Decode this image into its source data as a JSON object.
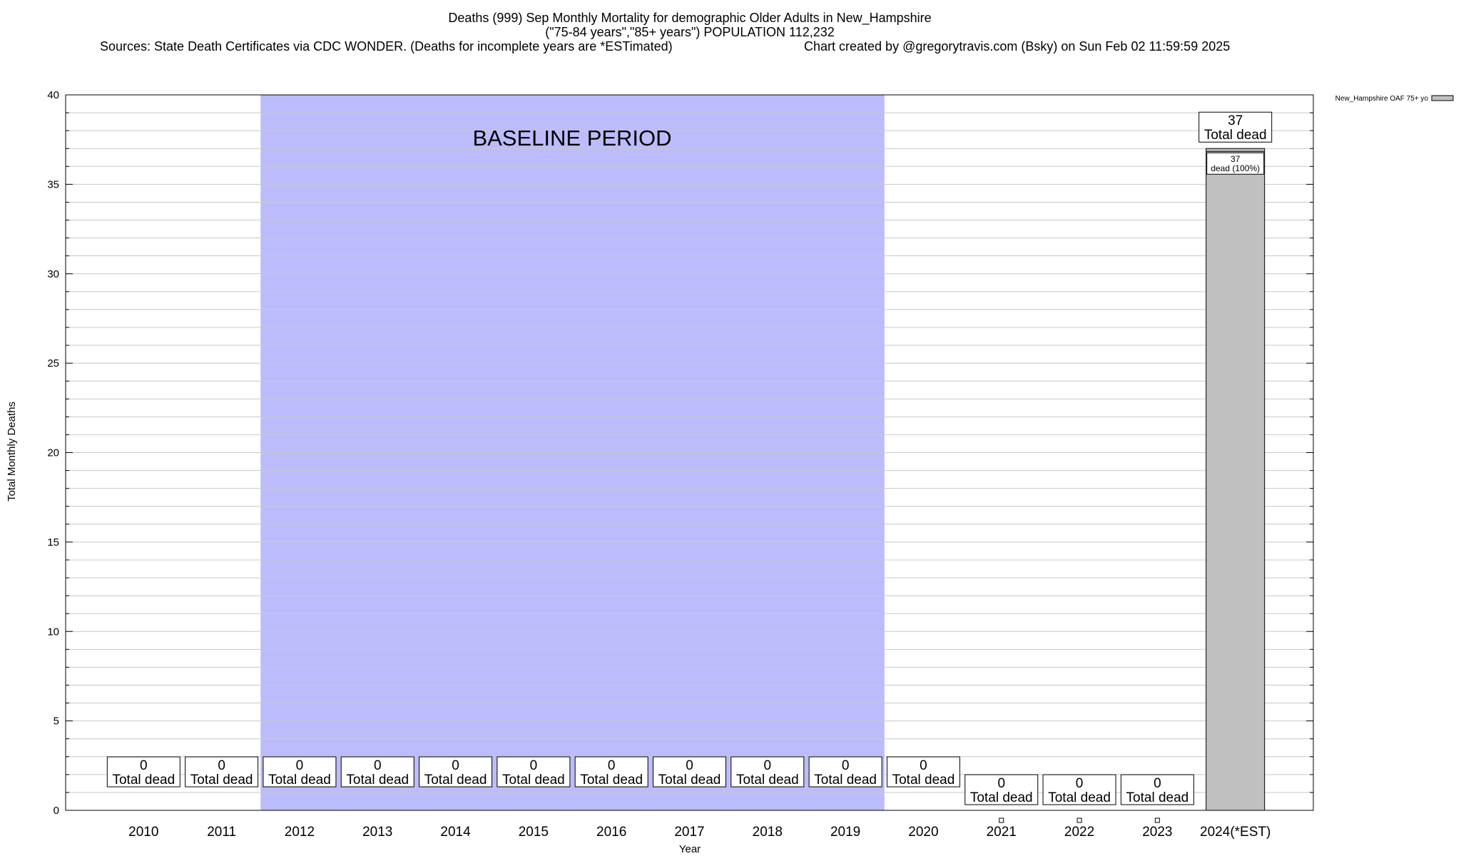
{
  "chart_data": {
    "type": "bar",
    "title_lines": [
      "Deaths (999) Sep Monthly Mortality for demographic Older Adults in New_Hampshire",
      "(\"75-84 years\",\"85+ years\") POPULATION 112,232"
    ],
    "sources": "Sources: State Death Certificates via CDC WONDER. (Deaths for incomplete years are *ESTimated)",
    "credit": "Chart created by @gregorytravis.com (Bsky) on Sun Feb 02 11:59:59 2025",
    "xlabel": "Year",
    "ylabel": "Total Monthly Deaths",
    "ylim": [
      0,
      40
    ],
    "yticks": [
      0,
      5,
      10,
      15,
      20,
      25,
      30,
      35,
      40
    ],
    "grid": true,
    "legend_placement": "top-right",
    "categories": [
      "2010",
      "2011",
      "2012",
      "2013",
      "2014",
      "2015",
      "2016",
      "2017",
      "2018",
      "2019",
      "2020",
      "2021",
      "2022",
      "2023",
      "2024(*EST)"
    ],
    "series": [
      {
        "name": "New_Hampshire OAF 75+ yo",
        "values": [
          0,
          0,
          0,
          0,
          0,
          0,
          0,
          0,
          0,
          0,
          0,
          0,
          0,
          0,
          37
        ],
        "color": "#c0c0c0"
      }
    ],
    "total_labels": [
      {
        "value": "0",
        "text": "Total dead"
      },
      {
        "value": "0",
        "text": "Total dead"
      },
      {
        "value": "0",
        "text": "Total dead"
      },
      {
        "value": "0",
        "text": "Total dead"
      },
      {
        "value": "0",
        "text": "Total dead"
      },
      {
        "value": "0",
        "text": "Total dead"
      },
      {
        "value": "0",
        "text": "Total dead"
      },
      {
        "value": "0",
        "text": "Total dead"
      },
      {
        "value": "0",
        "text": "Total dead"
      },
      {
        "value": "0",
        "text": "Total dead"
      },
      {
        "value": "0",
        "text": "Total dead"
      },
      {
        "value": "0",
        "text": "Total dead"
      },
      {
        "value": "0",
        "text": "Total dead"
      },
      {
        "value": "0",
        "text": "Total dead"
      },
      {
        "value": "37",
        "text": "Total dead"
      }
    ],
    "segment_label": {
      "category": "2024(*EST)",
      "value": "37",
      "text": "dead (100%)"
    },
    "baseline": {
      "label": "BASELINE PERIOD",
      "start": "2012",
      "end": "2019",
      "color": "#bcbcfc"
    }
  }
}
